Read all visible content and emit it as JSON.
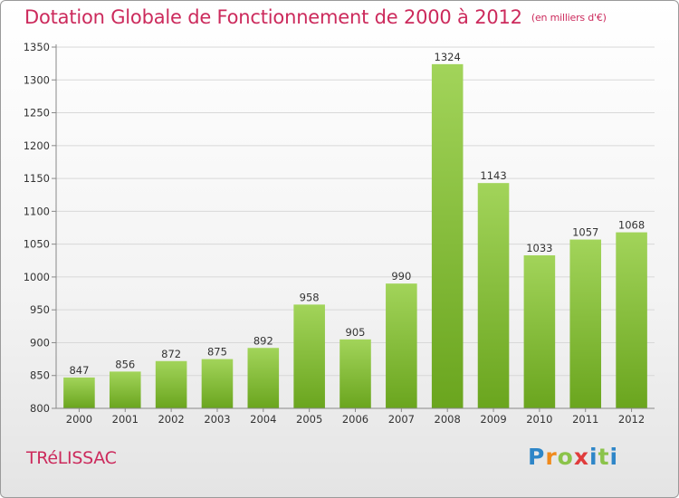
{
  "title": "Dotation Globale de Fonctionnement de 2000 à 2012",
  "subtitle": "(en milliers d'€)",
  "commune": "TRéLISSAC",
  "logo": {
    "letters": [
      "P",
      "r",
      "o",
      "x",
      "i",
      "t",
      "i"
    ],
    "colors": [
      "#2e86c8",
      "#f08a1c",
      "#8bc34a",
      "#e03c3c",
      "#2e86c8",
      "#8bc34a",
      "#2e86c8"
    ]
  },
  "colors": {
    "bar_light": "#a2d45a",
    "bar_dark": "#6aa51e",
    "title": "#cc2a5c"
  },
  "chart_data": {
    "type": "bar",
    "categories": [
      "2000",
      "2001",
      "2002",
      "2003",
      "2004",
      "2005",
      "2006",
      "2007",
      "2008",
      "2009",
      "2010",
      "2011",
      "2012"
    ],
    "values": [
      847,
      856,
      872,
      875,
      892,
      958,
      905,
      990,
      1324,
      1143,
      1033,
      1057,
      1068
    ],
    "ylim": [
      800,
      1350
    ],
    "yticks": [
      800,
      850,
      900,
      950,
      1000,
      1050,
      1100,
      1150,
      1200,
      1250,
      1300,
      1350
    ],
    "grid": true,
    "xlabel": "",
    "ylabel": ""
  }
}
